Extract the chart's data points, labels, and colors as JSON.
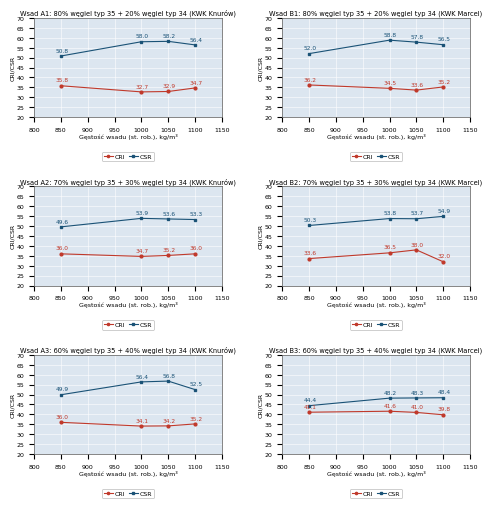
{
  "subplots": [
    {
      "title": "Wsad A1: 80% węgiel typ 35 + 20% węgiel typ 34 (KWK Knurów)",
      "x": [
        850,
        1000,
        1050,
        1100
      ],
      "cri": [
        35.8,
        32.7,
        32.9,
        34.7
      ],
      "csr": [
        50.8,
        58.0,
        58.2,
        56.4
      ],
      "xlim": [
        800,
        1150
      ],
      "ylim": [
        20,
        70
      ]
    },
    {
      "title": "Wsad B1: 80% węgiel typ 35 + 20% węgiel typ 34 (KWK Marcel)",
      "x": [
        850,
        1000,
        1050,
        1100
      ],
      "cri": [
        36.2,
        34.5,
        33.6,
        35.2
      ],
      "csr": [
        52.0,
        58.8,
        57.8,
        56.5
      ],
      "xlim": [
        800,
        1150
      ],
      "ylim": [
        20,
        70
      ]
    },
    {
      "title": "Wsad A2: 70% węgiel typ 35 + 30% węgiel typ 34 (KWK Knurów)",
      "x": [
        850,
        1000,
        1050,
        1100
      ],
      "cri": [
        36.0,
        34.7,
        35.2,
        36.0
      ],
      "csr": [
        49.6,
        53.9,
        53.6,
        53.3
      ],
      "xlim": [
        800,
        1150
      ],
      "ylim": [
        20,
        70
      ]
    },
    {
      "title": "Wsad B2: 70% węgiel typ 35 + 30% węgiel typ 34 (KWK Marcel)",
      "x": [
        850,
        1000,
        1050,
        1100
      ],
      "cri": [
        33.6,
        36.5,
        38.0,
        32.0
      ],
      "csr": [
        50.3,
        53.8,
        53.7,
        54.9
      ],
      "xlim": [
        800,
        1150
      ],
      "ylim": [
        20,
        70
      ]
    },
    {
      "title": "Wsad A3: 60% węgiel typ 35 + 40% węgiel typ 34 (KWK Knurów)",
      "x": [
        850,
        1000,
        1050,
        1100
      ],
      "cri": [
        36.0,
        34.1,
        34.2,
        35.2
      ],
      "csr": [
        49.9,
        56.4,
        56.8,
        52.5
      ],
      "xlim": [
        800,
        1150
      ],
      "ylim": [
        20,
        70
      ]
    },
    {
      "title": "Wsad B3: 60% węgiel typ 35 + 40% węgiel typ 34 (KWK Marcel)",
      "x": [
        850,
        1000,
        1050,
        1100
      ],
      "cri": [
        41.1,
        41.6,
        41.0,
        39.8
      ],
      "csr": [
        44.4,
        48.2,
        48.3,
        48.4
      ],
      "xlim": [
        800,
        1150
      ],
      "ylim": [
        20,
        70
      ]
    }
  ],
  "xlabel": "Gęstość wsadu (st. rob.), kg/m³",
  "ylabel": "CRI/CSR",
  "cri_color": "#c0392b",
  "csr_color": "#1a5276",
  "cri_label": "CRI",
  "csr_label": "CSR",
  "background_color": "#dce6f0",
  "grid_color": "#aaaaaa",
  "title_fontsize": 4.8,
  "label_fontsize": 4.5,
  "tick_fontsize": 4.5,
  "annot_fontsize": 4.2,
  "legend_fontsize": 4.5
}
